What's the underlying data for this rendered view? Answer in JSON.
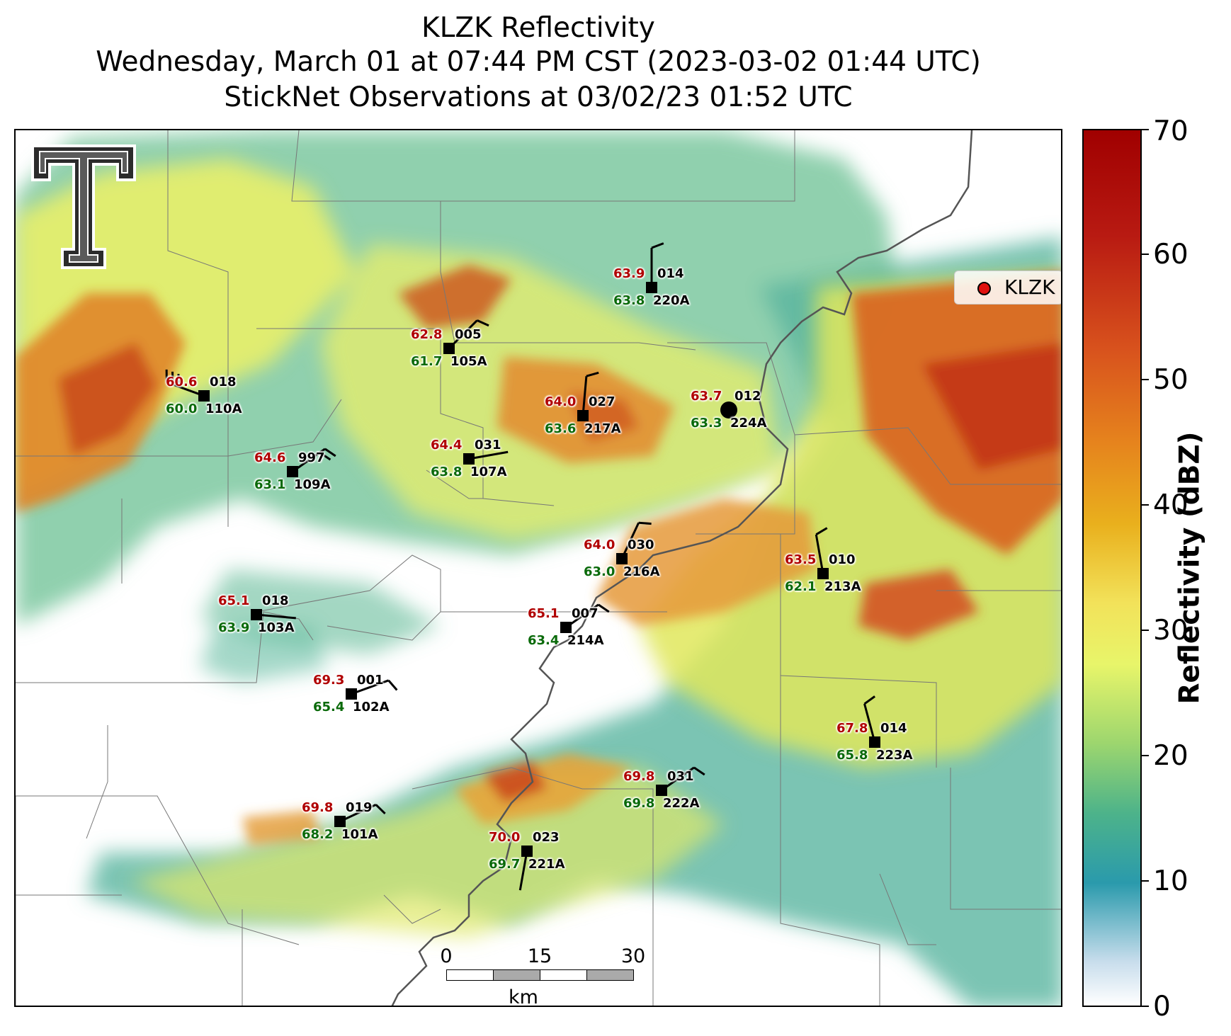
{
  "title": {
    "line1": "KLZK Reflectivity",
    "line2": "Wednesday, March 01 at 07:44 PM CST (2023-03-02 01:44 UTC)",
    "line3": "StickNet Observations at 03/02/23 01:52 UTC"
  },
  "legend": {
    "label": "KLZK",
    "marker_color": "#e0110f"
  },
  "logo": {
    "name": "texas-tech-double-t-logo",
    "lettering": "T"
  },
  "colorbar": {
    "label": "Reflectivity (dBZ)",
    "min": 0,
    "max": 70,
    "ticks": [
      "0",
      "10",
      "20",
      "30",
      "40",
      "50",
      "60",
      "70"
    ]
  },
  "scale_bar": {
    "ticks": [
      "0",
      "15",
      "30"
    ],
    "unit": "km"
  },
  "radar": {
    "name": "KLZK",
    "color": "#000000"
  },
  "stations": [
    {
      "id": "110A",
      "temp": "60.6",
      "dew": "60.0",
      "pres": "018",
      "wind_dir": 290,
      "barbs": 3
    },
    {
      "id": "105A",
      "temp": "62.8",
      "dew": "61.7",
      "pres": "005",
      "wind_dir": 45,
      "barbs": 1
    },
    {
      "id": "220A",
      "temp": "63.9",
      "dew": "63.8",
      "pres": "014",
      "wind_dir": 0,
      "barbs": 1
    },
    {
      "id": "217A",
      "temp": "64.0",
      "dew": "63.6",
      "pres": "027",
      "wind_dir": 5,
      "barbs": 1
    },
    {
      "id": "224A",
      "temp": "63.7",
      "dew": "63.3",
      "pres": "012",
      "wind_dir": null,
      "barbs": 0
    },
    {
      "id": "109A",
      "temp": "64.6",
      "dew": "63.1",
      "pres": "997",
      "wind_dir": 55,
      "barbs": 2
    },
    {
      "id": "107A",
      "temp": "64.4",
      "dew": "63.8",
      "pres": "031",
      "wind_dir": 80,
      "barbs": 0
    },
    {
      "id": "216A",
      "temp": "64.0",
      "dew": "63.0",
      "pres": "030",
      "wind_dir": 25,
      "barbs": 1
    },
    {
      "id": "213A",
      "temp": "63.5",
      "dew": "62.1",
      "pres": "010",
      "wind_dir": 350,
      "barbs": 1
    },
    {
      "id": "103A",
      "temp": "65.1",
      "dew": "63.9",
      "pres": "018",
      "wind_dir": 95,
      "barbs": 0
    },
    {
      "id": "214A",
      "temp": "65.1",
      "dew": "63.4",
      "pres": "007",
      "wind_dir": 55,
      "barbs": 1
    },
    {
      "id": "102A",
      "temp": "69.3",
      "dew": "65.4",
      "pres": "001",
      "wind_dir": 70,
      "barbs": 1
    },
    {
      "id": "223A",
      "temp": "67.8",
      "dew": "65.8",
      "pres": "014",
      "wind_dir": 345,
      "barbs": 1
    },
    {
      "id": "222A",
      "temp": "69.8",
      "dew": "69.8",
      "pres": "031",
      "wind_dir": 55,
      "barbs": 1
    },
    {
      "id": "101A",
      "temp": "69.8",
      "dew": "68.2",
      "pres": "019",
      "wind_dir": 65,
      "barbs": 1
    },
    {
      "id": "221A",
      "temp": "70.0",
      "dew": "69.7",
      "pres": "023",
      "wind_dir": 190,
      "barbs": 0
    }
  ]
}
